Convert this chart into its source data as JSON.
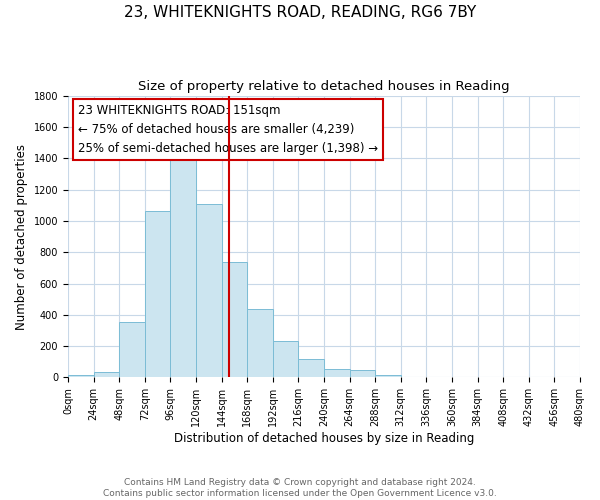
{
  "title": "23, WHITEKNIGHTS ROAD, READING, RG6 7BY",
  "subtitle": "Size of property relative to detached houses in Reading",
  "xlabel": "Distribution of detached houses by size in Reading",
  "ylabel": "Number of detached properties",
  "bar_color": "#cce5f0",
  "bar_edge_color": "#7bbcd5",
  "bins": [
    0,
    24,
    48,
    72,
    96,
    120,
    144,
    168,
    192,
    216,
    240,
    264,
    288,
    312,
    336,
    360,
    384,
    408,
    432,
    456,
    480
  ],
  "values": [
    15,
    35,
    355,
    1060,
    1470,
    1110,
    735,
    435,
    230,
    115,
    55,
    50,
    18,
    5,
    0,
    0,
    0,
    0,
    0,
    0
  ],
  "property_line_x": 151,
  "property_line_color": "#cc0000",
  "annotation_title": "23 WHITEKNIGHTS ROAD: 151sqm",
  "annotation_line1": "← 75% of detached houses are smaller (4,239)",
  "annotation_line2": "25% of semi-detached houses are larger (1,398) →",
  "annotation_box_color": "#ffffff",
  "annotation_box_edge": "#cc0000",
  "ylim": [
    0,
    1800
  ],
  "xlim": [
    0,
    480
  ],
  "yticks": [
    0,
    200,
    400,
    600,
    800,
    1000,
    1200,
    1400,
    1600,
    1800
  ],
  "xtick_labels": [
    "0sqm",
    "24sqm",
    "48sqm",
    "72sqm",
    "96sqm",
    "120sqm",
    "144sqm",
    "168sqm",
    "192sqm",
    "216sqm",
    "240sqm",
    "264sqm",
    "288sqm",
    "312sqm",
    "336sqm",
    "360sqm",
    "384sqm",
    "408sqm",
    "432sqm",
    "456sqm",
    "480sqm"
  ],
  "footer_line1": "Contains HM Land Registry data © Crown copyright and database right 2024.",
  "footer_line2": "Contains public sector information licensed under the Open Government Licence v3.0.",
  "background_color": "#ffffff",
  "grid_color": "#c8d8e8",
  "title_fontsize": 11,
  "subtitle_fontsize": 9.5,
  "axis_label_fontsize": 8.5,
  "tick_fontsize": 7,
  "footer_fontsize": 6.5,
  "annotation_fontsize": 8.5,
  "annotation_title_fontsize": 9
}
